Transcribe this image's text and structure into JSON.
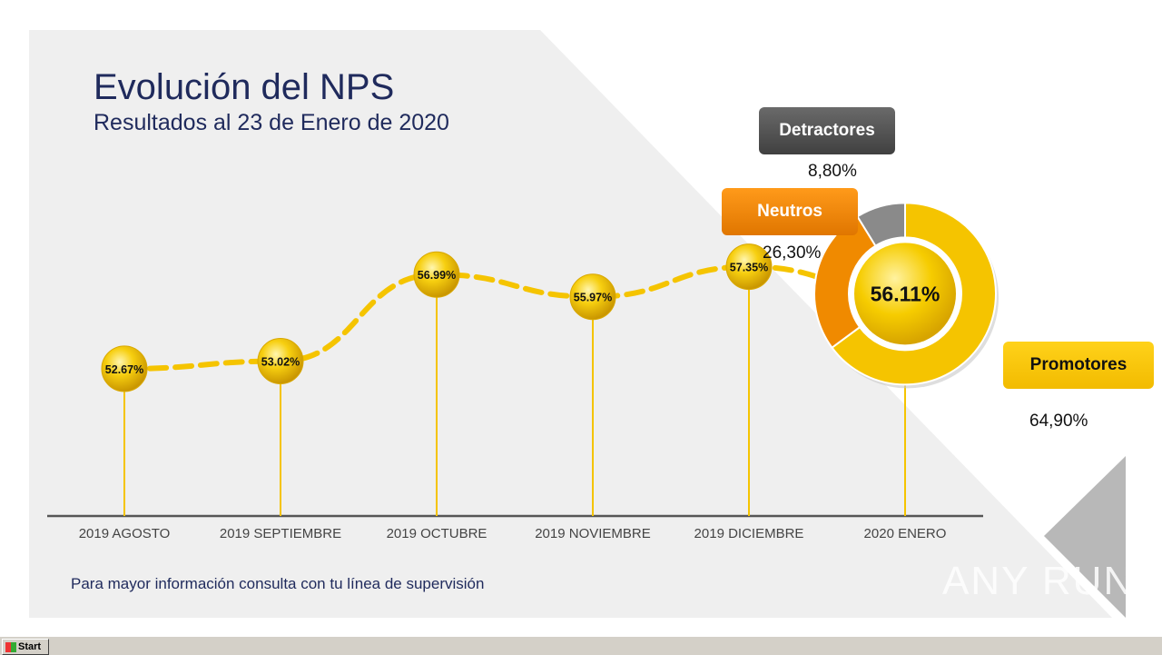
{
  "slide": {
    "title": "Evolución del NPS",
    "subtitle": "Resultados al 23 de Enero de 2020",
    "footnote": "Para mayor información consulta con tu línea de supervisión"
  },
  "colors": {
    "title": "#1f2a5c",
    "promotores": "#f5c400",
    "neutros": "#f08a00",
    "detractores": "#8a8a8a",
    "line": "#f5c400",
    "stem": "#f5c400"
  },
  "chart_data": [
    {
      "type": "line",
      "categories": [
        "2019 AGOSTO",
        "2019 SEPTIEMBRE",
        "2019 OCTUBRE",
        "2019 NOVIEMBRE",
        "2019 DICIEMBRE",
        "2020 ENERO"
      ],
      "values": [
        52.67,
        53.02,
        56.99,
        55.97,
        57.35,
        56.11
      ],
      "data_labels": [
        "52.67%",
        "53.02%",
        "56.99%",
        "55.97%",
        "57.35%",
        "56.11%"
      ],
      "title": "",
      "xlabel": "",
      "ylabel": "",
      "grid": false
    },
    {
      "type": "pie",
      "labels": [
        "Promotores",
        "Neutros",
        "Detractores"
      ],
      "values": [
        64.9,
        26.3,
        8.8
      ],
      "value_labels": [
        "64,90%",
        "26,30%",
        "8,80%"
      ],
      "center_label": "56.11%"
    }
  ],
  "legend": {
    "detractores": {
      "label": "Detractores",
      "value": "8,80%"
    },
    "neutros": {
      "label": "Neutros",
      "value": "26,30%"
    },
    "promotores": {
      "label": "Promotores",
      "value": "64,90%"
    }
  },
  "taskbar": {
    "start_label": "Start"
  },
  "watermark": "ANY RUN"
}
